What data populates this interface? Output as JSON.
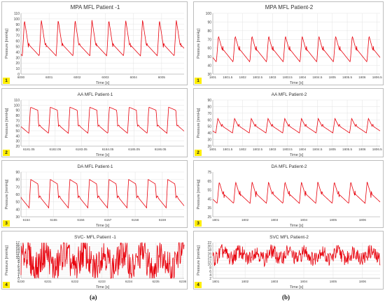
{
  "captions": {
    "left": "(a)",
    "right": "(b)"
  },
  "chart_data": [
    {
      "type": "line",
      "title": "MPA MFL Patient -1",
      "badge": "1",
      "ylabel": "Pressure [mmHg]",
      "xlabel": "Time  [s]",
      "ylim": [
        0,
        110
      ],
      "ytick_step": 10,
      "xticks": [
        "6000",
        "6001",
        "6002",
        "6003",
        "6004",
        "6005"
      ],
      "xtick_pos": [
        0,
        1,
        2,
        3,
        4,
        5
      ],
      "xlim": [
        0,
        5.8
      ],
      "grid": true,
      "wave": {
        "period": 0.6,
        "phase": 0.05,
        "base": 33,
        "peak": 98,
        "notch": 52,
        "shape": "arterial"
      }
    },
    {
      "type": "line",
      "title": "MPA MFL Patient-2",
      "badge": "1",
      "ylabel": "Pressure [mmHg]",
      "xlabel": "Time  [s]",
      "ylim": [
        30,
        100
      ],
      "ytick_step": 10,
      "xticks": [
        "1801",
        "1801.5",
        "1802",
        "1802.5",
        "1803",
        "1803.5",
        "1804",
        "1804.5",
        "1805",
        "1805.5",
        "1806",
        "1806.5"
      ],
      "xtick_pos": [
        0,
        0.5,
        1,
        1.5,
        2,
        2.5,
        3,
        3.5,
        4,
        4.5,
        5,
        5.5
      ],
      "xlim": [
        0,
        5.6
      ],
      "grid": true,
      "wave": {
        "period": 0.56,
        "phase": 0.12,
        "base": 44,
        "peak": 74,
        "notch": 58,
        "shape": "arterial"
      }
    },
    {
      "type": "line",
      "title": "AA MFL Patient-1",
      "badge": "2",
      "ylabel": "Pressure [mmHg]",
      "xlabel": "Time [s]",
      "ylim": [
        20,
        110
      ],
      "ytick_step": 10,
      "xticks": [
        "6181.05",
        "6182.05",
        "6183.05",
        "6184.05",
        "6185.05",
        "6186.05"
      ],
      "xtick_pos": [
        0,
        1,
        2,
        3,
        4,
        5
      ],
      "xlim": [
        -0.3,
        5.9
      ],
      "grid": true,
      "wave": {
        "period": 0.75,
        "phase": 0.0,
        "base": 45,
        "peak": 96,
        "notch": 58,
        "shape": "square"
      }
    },
    {
      "type": "line",
      "title": "AA MFL Patient-2",
      "badge": "2",
      "ylabel": "Pressure [mmHg]",
      "xlabel": "Time [s]",
      "ylim": [
        20,
        90
      ],
      "ytick_step": 10,
      "xticks": [
        "1801",
        "1801.5",
        "1802",
        "1802.5",
        "1803",
        "1803.5",
        "1804",
        "1804.5",
        "1805",
        "1805.5",
        "1806",
        "1806.5"
      ],
      "xtick_pos": [
        0,
        0.5,
        1,
        1.5,
        2,
        2.5,
        3,
        3.5,
        4,
        4.5,
        5,
        5.5
      ],
      "xlim": [
        0,
        5.6
      ],
      "grid": true,
      "wave": {
        "period": 0.56,
        "phase": 0.1,
        "base": 40,
        "peak": 62,
        "notch": 50,
        "shape": "arterial"
      }
    },
    {
      "type": "line",
      "title": "DA MFL Patient-1",
      "badge": "3",
      "ylabel": "Pressure [mmHg]",
      "xlabel": "Time [s]",
      "ylim": [
        30,
        90
      ],
      "ytick_step": 10,
      "xticks": [
        "6154",
        "6155",
        "6156",
        "6157",
        "6158",
        "6159"
      ],
      "xtick_pos": [
        0,
        1,
        2,
        3,
        4,
        5
      ],
      "xlim": [
        -0.2,
        5.8
      ],
      "grid": true,
      "wave": {
        "period": 0.72,
        "phase": 0.1,
        "base": 42,
        "peak": 80,
        "notch": 55,
        "shape": "square"
      }
    },
    {
      "type": "line",
      "title": "DA MFL Patient-2",
      "badge": "3",
      "ylabel": "Pressure [mmHg]",
      "xlabel": "Time [s]",
      "ylim": [
        25,
        75
      ],
      "ytick_step": 10,
      "xticks": [
        "1801",
        "1802",
        "1803",
        "1804",
        "1805",
        "1806"
      ],
      "xtick_pos": [
        0,
        1,
        2,
        3,
        4,
        5
      ],
      "xlim": [
        -0.1,
        5.6
      ],
      "grid": false,
      "wave": {
        "period": 0.56,
        "phase": 0.05,
        "base": 40,
        "peak": 64,
        "notch": 50,
        "shape": "arterial"
      }
    },
    {
      "type": "line",
      "title": "SVC- MFL  Patient -1",
      "badge": "4",
      "ylabel": "Pressure [mmHg]",
      "xlabel": "Time [s]",
      "ylim": [
        0,
        17
      ],
      "ytick_step": 1,
      "xticks": [
        "6230",
        "6231",
        "6232",
        "6233",
        "6234",
        "6235",
        "6236"
      ],
      "xtick_pos": [
        0,
        1,
        2,
        3,
        4,
        5,
        6
      ],
      "xlim": [
        0,
        6.05
      ],
      "grid": true,
      "wave": {
        "period": 0.72,
        "phase": 0.0,
        "base": 3,
        "peak": 14,
        "notch": 8,
        "shape": "noisy"
      }
    },
    {
      "type": "line",
      "title": "SVC MFL Patient-2",
      "badge": "4",
      "ylabel": "Pressure [mmHg]",
      "xlabel": "Time [s]",
      "ylim": [
        2,
        22
      ],
      "ytick_step": 2,
      "xticks": [
        "1801",
        "1802",
        "1803",
        "1804",
        "1805",
        "1806"
      ],
      "xtick_pos": [
        0,
        1,
        2,
        3,
        4,
        5
      ],
      "xlim": [
        -0.1,
        5.6
      ],
      "grid": true,
      "wave": {
        "period": 0.56,
        "phase": 0.1,
        "base": 12,
        "peak": 18,
        "notch": 14,
        "shape": "noisy"
      }
    }
  ]
}
